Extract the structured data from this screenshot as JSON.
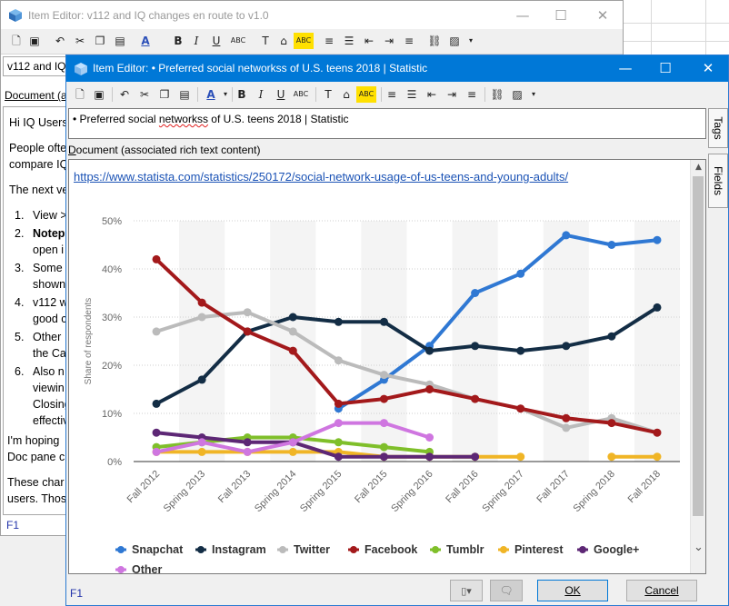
{
  "background_window": {
    "title": "Item Editor: v112 and IQ changes en route to v1.0",
    "title_field_value": "v112 and IQ",
    "doc_label": "Document (a",
    "doc": {
      "greeting": "Hi IQ Users",
      "para1_line1": "People ofte",
      "para1_line2": "compare IQ",
      "para2": "The next ve",
      "items": [
        {
          "num": "1.",
          "lines": [
            "View >"
          ]
        },
        {
          "num": "2.",
          "lines": [
            "Notep",
            "open i"
          ]
        },
        {
          "num": "3.",
          "lines": [
            "Some",
            "shown"
          ]
        },
        {
          "num": "4.",
          "lines": [
            "v112 w",
            "good c"
          ]
        },
        {
          "num": "5.",
          "lines": [
            "Other",
            "the Ca"
          ]
        },
        {
          "num": "6.",
          "lines": [
            "Also n",
            "viewin",
            "Closing",
            "effectiv"
          ]
        }
      ],
      "para3_line1": "I'm hoping",
      "para3_line2": "Doc pane c",
      "para4_line1": "These char",
      "para4_line2": "users. Thos"
    },
    "f1_label": "F1",
    "controls": {
      "minimize": "—",
      "maximize": "☐",
      "close": "✕"
    }
  },
  "foreground_window": {
    "title": "Item Editor: • Preferred social networkss of U.S. teens 2018 | Statistic",
    "title_field_bullet": "• ",
    "title_field_pre": "Preferred social ",
    "title_field_misspelled": "networkss",
    "title_field_post": " of U.S. teens 2018 | Statistic",
    "doc_label_pre": "D",
    "doc_label_rest": "ocument (associated rich text content)",
    "link": "https://www.statista.com/statistics/250172/social-network-usage-of-us-teens-and-young-adults/",
    "side_tabs": [
      "Tags",
      "Fields"
    ],
    "f1_label": "F1",
    "buttons": {
      "ok": "OK",
      "cancel": "Cancel"
    },
    "controls": {
      "minimize": "—",
      "maximize": "☐",
      "close": "✕"
    }
  },
  "toolbar_icons": [
    "new-doc",
    "save",
    "undo",
    "cut",
    "copy",
    "paste",
    "font-color",
    "bold",
    "italic",
    "underline",
    "strikethrough",
    "clear-format",
    "highlight",
    "spellcheck",
    "numbered-list",
    "bullet-list",
    "outdent",
    "indent",
    "align",
    "link",
    "image",
    "more"
  ],
  "toolbar_glyphs": {
    "bold": "B",
    "italic": "I",
    "underline": "U",
    "abc": "ABC"
  },
  "chart_data": {
    "type": "line",
    "ylabel": "Share of respondents",
    "ylim": [
      0,
      50
    ],
    "yticks": [
      0,
      10,
      20,
      30,
      40,
      50
    ],
    "ytick_labels": [
      "0%",
      "10%",
      "20%",
      "30%",
      "40%",
      "50%"
    ],
    "categories": [
      "Fall 2012",
      "Spring 2013",
      "Fall 2013",
      "Spring 2014",
      "Spring 2015",
      "Fall 2015",
      "Spring 2016",
      "Fall 2016",
      "Spring 2017",
      "Fall 2017",
      "Spring 2018",
      "Fall 2018"
    ],
    "series": [
      {
        "name": "Snapchat",
        "color": "#2f78d3",
        "values": [
          null,
          null,
          null,
          null,
          11,
          17,
          24,
          35,
          39,
          47,
          45,
          46
        ]
      },
      {
        "name": "Instagram",
        "color": "#132d45",
        "values": [
          12,
          17,
          27,
          30,
          29,
          29,
          23,
          24,
          23,
          24,
          26,
          32
        ]
      },
      {
        "name": "Twitter",
        "color": "#bbbbbb",
        "values": [
          27,
          30,
          31,
          27,
          21,
          18,
          16,
          13,
          11,
          7,
          9,
          6
        ]
      },
      {
        "name": "Facebook",
        "color": "#a3191b",
        "values": [
          42,
          33,
          27,
          23,
          12,
          13,
          15,
          13,
          11,
          9,
          8,
          6
        ]
      },
      {
        "name": "Tumblr",
        "color": "#7fbf2a",
        "values": [
          3,
          4,
          5,
          5,
          4,
          3,
          2,
          null,
          null,
          null,
          null,
          null
        ]
      },
      {
        "name": "Pinterest",
        "color": "#f0b526",
        "values": [
          2,
          2,
          2,
          2,
          2,
          1,
          1,
          1,
          1,
          null,
          1,
          1
        ]
      },
      {
        "name": "Google+",
        "color": "#5d2775",
        "values": [
          6,
          5,
          4,
          4,
          1,
          1,
          1,
          1,
          null,
          null,
          null,
          null
        ]
      },
      {
        "name": "Other",
        "color": "#cf76e0",
        "values": [
          2,
          4,
          2,
          4,
          8,
          8,
          5,
          null,
          null,
          null,
          null,
          null
        ]
      }
    ],
    "legend_placement": "bottom",
    "grid": true
  }
}
